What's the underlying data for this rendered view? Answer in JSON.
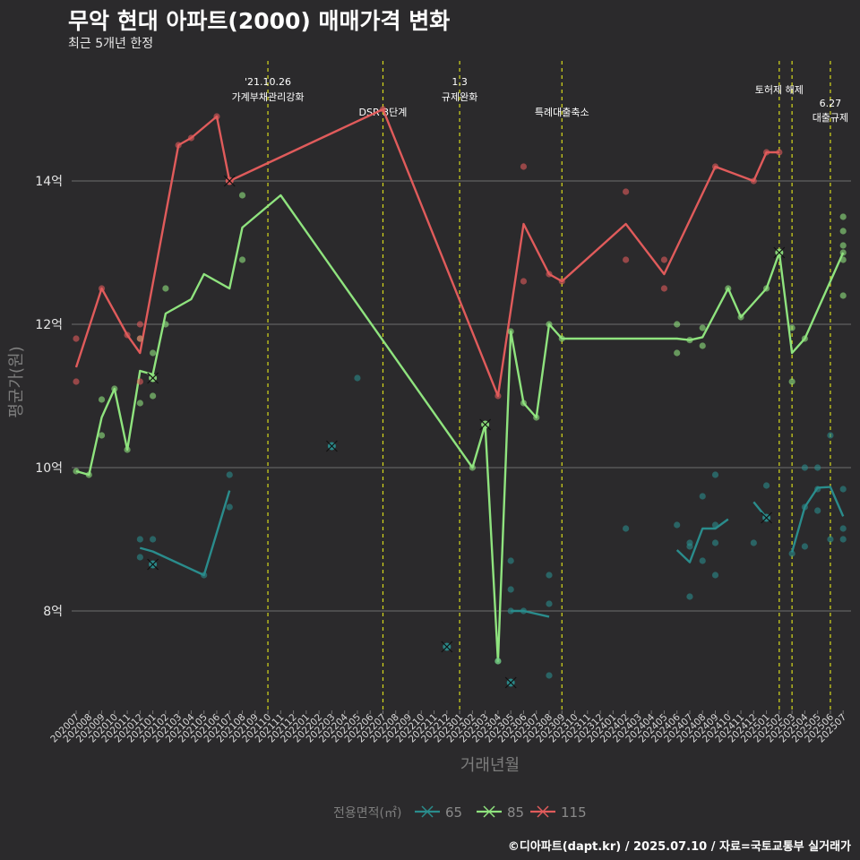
{
  "header": {
    "title": "무악 현대 아파트(2000) 매매가격 변화",
    "subtitle": "최근 5개년 한정"
  },
  "caption": "©디아파트(dapt.kr) / 2025.07.10 / 자료=국토교통부 실거래가",
  "chart_data": {
    "type": "line",
    "title": "무악 현대 아파트(2000) 매매가격 변화",
    "subtitle": "최근 5개년 한정",
    "xlabel": "거래년월",
    "ylabel": "평균가(원)",
    "ylim": [
      6.6,
      16.5
    ],
    "grid": true,
    "legend_position": "bottom",
    "legend_title": "전용면적(㎡)",
    "categories": [
      "202007",
      "202008",
      "202009",
      "202010",
      "202011",
      "202012",
      "202101",
      "202102",
      "202103",
      "202104",
      "202105",
      "202106",
      "202107",
      "202108",
      "202109",
      "202110",
      "202111",
      "202112",
      "202201",
      "202202",
      "202203",
      "202204",
      "202205",
      "202206",
      "202207",
      "202208",
      "202209",
      "202210",
      "202211",
      "202212",
      "202301",
      "202302",
      "202303",
      "202304",
      "202305",
      "202306",
      "202307",
      "202308",
      "202309",
      "202310",
      "202311",
      "202312",
      "202401",
      "202402",
      "202403",
      "202404",
      "202405",
      "202406",
      "202407",
      "202408",
      "202409",
      "202410",
      "202411",
      "202412",
      "202501",
      "202502",
      "202503",
      "202504",
      "202505",
      "202506",
      "202507"
    ],
    "yticks": [
      {
        "value": 8,
        "label": "8억"
      },
      {
        "value": 10,
        "label": "10억"
      },
      {
        "value": 12,
        "label": "12억"
      },
      {
        "value": 14,
        "label": "14억"
      }
    ],
    "series": [
      {
        "name": "65",
        "color": "#2a8c8c",
        "line": [
          [
            [
              5,
              8.88
            ],
            [
              6,
              8.83
            ],
            [
              10,
              8.5
            ],
            [
              12,
              9.68
            ]
          ],
          [
            [
              34,
              8.0
            ],
            [
              35,
              8.0
            ],
            [
              37,
              7.92
            ]
          ],
          [
            [
              47,
              8.85
            ],
            [
              48,
              8.68
            ],
            [
              49,
              9.15
            ],
            [
              50,
              9.15
            ],
            [
              51,
              9.28
            ]
          ],
          [
            [
              53,
              9.52
            ],
            [
              54,
              9.3
            ]
          ],
          [
            [
              56,
              8.82
            ],
            [
              57,
              9.45
            ],
            [
              58,
              9.72
            ],
            [
              59,
              9.73
            ],
            [
              60,
              9.32
            ]
          ]
        ],
        "points": [
          [
            5,
            9.0
          ],
          [
            5,
            8.75
          ],
          [
            6,
            9.0
          ],
          [
            6,
            8.65
          ],
          [
            10,
            8.5
          ],
          [
            12,
            9.9
          ],
          [
            12,
            9.45
          ],
          [
            20,
            10.3
          ],
          [
            22,
            11.25
          ],
          [
            29,
            7.5
          ],
          [
            33,
            7.3
          ],
          [
            34,
            8.7
          ],
          [
            34,
            8.3
          ],
          [
            34,
            7.0
          ],
          [
            34,
            8.0
          ],
          [
            35,
            8.0
          ],
          [
            37,
            8.5
          ],
          [
            37,
            8.1
          ],
          [
            37,
            7.1
          ],
          [
            43,
            9.15
          ],
          [
            47,
            9.2
          ],
          [
            48,
            8.95
          ],
          [
            48,
            8.9
          ],
          [
            48,
            8.2
          ],
          [
            49,
            9.6
          ],
          [
            49,
            8.7
          ],
          [
            50,
            9.9
          ],
          [
            50,
            9.2
          ],
          [
            50,
            8.95
          ],
          [
            50,
            8.5
          ],
          [
            53,
            8.95
          ],
          [
            54,
            9.75
          ],
          [
            54,
            9.3
          ],
          [
            56,
            8.8
          ],
          [
            57,
            10.0
          ],
          [
            57,
            9.45
          ],
          [
            57,
            8.9
          ],
          [
            58,
            10.0
          ],
          [
            58,
            9.7
          ],
          [
            58,
            9.4
          ],
          [
            59,
            10.45
          ],
          [
            59,
            9.0
          ],
          [
            60,
            9.7
          ],
          [
            60,
            9.15
          ],
          [
            60,
            9.0
          ]
        ],
        "markers": [
          [
            6,
            8.65
          ],
          [
            20,
            10.3
          ],
          [
            29,
            7.5
          ],
          [
            34,
            7.0
          ],
          [
            54,
            9.3
          ]
        ]
      },
      {
        "name": "85",
        "color": "#8fe37e",
        "line": [
          [
            [
              0,
              9.95
            ],
            [
              1,
              9.9
            ],
            [
              2,
              10.7
            ],
            [
              3,
              11.1
            ],
            [
              4,
              10.25
            ],
            [
              5,
              11.35
            ],
            [
              6,
              11.3
            ],
            [
              7,
              12.15
            ],
            [
              9,
              12.35
            ],
            [
              10,
              12.7
            ],
            [
              12,
              12.5
            ],
            [
              13,
              13.35
            ],
            [
              16,
              13.8
            ],
            [
              31,
              10.0
            ],
            [
              32,
              10.6
            ],
            [
              33,
              7.3
            ],
            [
              34,
              11.9
            ],
            [
              35,
              10.9
            ],
            [
              36,
              10.7
            ],
            [
              37,
              12.0
            ],
            [
              38,
              11.8
            ],
            [
              47,
              11.8
            ],
            [
              48,
              11.78
            ],
            [
              49,
              11.82
            ],
            [
              51,
              12.5
            ],
            [
              52,
              12.1
            ],
            [
              54,
              12.5
            ],
            [
              55,
              13.0
            ],
            [
              56,
              11.6
            ],
            [
              57,
              11.8
            ],
            [
              60,
              13.0
            ]
          ]
        ],
        "points": [
          [
            0,
            9.95
          ],
          [
            1,
            9.9
          ],
          [
            2,
            10.95
          ],
          [
            2,
            10.45
          ],
          [
            3,
            11.1
          ],
          [
            4,
            10.25
          ],
          [
            5,
            11.8
          ],
          [
            5,
            10.9
          ],
          [
            6,
            11.6
          ],
          [
            6,
            11.0
          ],
          [
            7,
            12.5
          ],
          [
            7,
            12.0
          ],
          [
            13,
            13.8
          ],
          [
            13,
            12.9
          ],
          [
            31,
            10.0
          ],
          [
            33,
            7.3
          ],
          [
            34,
            11.9
          ],
          [
            35,
            10.9
          ],
          [
            36,
            10.7
          ],
          [
            37,
            12.0
          ],
          [
            38,
            11.8
          ],
          [
            47,
            12.0
          ],
          [
            47,
            11.6
          ],
          [
            48,
            11.78
          ],
          [
            49,
            11.95
          ],
          [
            49,
            11.7
          ],
          [
            51,
            12.5
          ],
          [
            52,
            12.1
          ],
          [
            54,
            12.5
          ],
          [
            56,
            11.95
          ],
          [
            56,
            11.2
          ],
          [
            57,
            11.8
          ],
          [
            60,
            13.5
          ],
          [
            60,
            13.3
          ],
          [
            60,
            13.1
          ],
          [
            60,
            13.0
          ],
          [
            60,
            12.9
          ],
          [
            60,
            12.4
          ]
        ],
        "markers": [
          [
            6,
            11.25
          ],
          [
            32,
            10.6
          ],
          [
            55,
            13.0
          ]
        ]
      },
      {
        "name": "115",
        "color": "#e05b5b",
        "line": [
          [
            [
              0,
              11.4
            ],
            [
              2,
              12.5
            ],
            [
              4,
              11.85
            ],
            [
              5,
              11.6
            ],
            [
              8,
              14.5
            ],
            [
              9,
              14.6
            ],
            [
              11,
              14.9
            ],
            [
              12,
              14.0
            ],
            [
              24,
              15.0
            ],
            [
              33,
              11.0
            ],
            [
              35,
              13.4
            ],
            [
              37,
              12.7
            ],
            [
              38,
              12.6
            ],
            [
              43,
              13.4
            ],
            [
              46,
              12.7
            ],
            [
              50,
              14.2
            ],
            [
              53,
              14.0
            ],
            [
              54,
              14.4
            ],
            [
              55,
              14.4
            ]
          ]
        ],
        "points": [
          [
            0,
            11.8
          ],
          [
            0,
            11.2
          ],
          [
            2,
            12.5
          ],
          [
            4,
            11.85
          ],
          [
            5,
            12.0
          ],
          [
            5,
            11.8
          ],
          [
            5,
            11.2
          ],
          [
            8,
            14.5
          ],
          [
            9,
            14.6
          ],
          [
            11,
            14.9
          ],
          [
            24,
            15.0
          ],
          [
            33,
            11.0
          ],
          [
            35,
            14.2
          ],
          [
            35,
            12.6
          ],
          [
            37,
            12.7
          ],
          [
            38,
            12.6
          ],
          [
            43,
            13.85
          ],
          [
            43,
            12.9
          ],
          [
            46,
            12.9
          ],
          [
            46,
            12.5
          ],
          [
            50,
            14.2
          ],
          [
            53,
            14.0
          ],
          [
            54,
            14.4
          ],
          [
            55,
            14.4
          ]
        ],
        "markers": [
          [
            12,
            14.0
          ]
        ]
      }
    ],
    "events": [
      {
        "x": 15,
        "label1": "'21.10.26",
        "label2": "가계부채관리강화"
      },
      {
        "x": 24,
        "label1": "",
        "label2": "DSR 3단계"
      },
      {
        "x": 30,
        "label1": "1.3",
        "label2": "규제완화"
      },
      {
        "x": 38,
        "label1": "",
        "label2": "특례대출축소"
      },
      {
        "x": 55,
        "label1": "",
        "label2": "토허제 해제"
      },
      {
        "x": 56,
        "label1": "",
        "label2": ""
      },
      {
        "x": 59,
        "label1": "6.27",
        "label2": "대출규제"
      }
    ]
  }
}
